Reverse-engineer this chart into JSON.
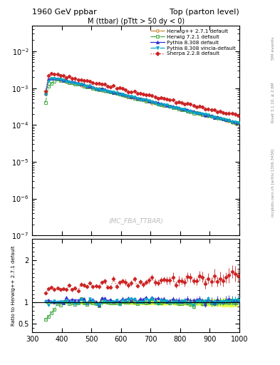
{
  "title_left": "1960 GeV ppbar",
  "title_right": "Top (parton level)",
  "plot_title": "M (ttbar) (pTtt > 50 dy < 0)",
  "watermark": "(MC_FBA_TTBAR)",
  "right_label_top": "5M events",
  "right_label_rivet": "Rivet 3.1.10, ≥ 2.6M",
  "right_label_arxiv": "mcplots.cern.ch [arXiv:1306.3436]",
  "ylabel_ratio": "Ratio to Herwig++ 2.7.1 default",
  "xlim": [
    300,
    1000
  ],
  "ylim_main": [
    1e-07,
    0.05
  ],
  "ylim_ratio": [
    0.3,
    2.5
  ],
  "ratio_yticks": [
    0.5,
    1.0,
    2.0
  ],
  "series": [
    {
      "label": "Herwig++ 2.7.1 default",
      "color": "#cc8833",
      "linestyle": "-.",
      "marker": "o",
      "marker_size": 2.5,
      "filled": false
    },
    {
      "label": "Herwig 7.2.1 default",
      "color": "#44aa44",
      "linestyle": "-.",
      "marker": "s",
      "marker_size": 2.5,
      "filled": false
    },
    {
      "label": "Pythia 8.308 default",
      "color": "#3333cc",
      "linestyle": "-",
      "marker": "^",
      "marker_size": 2.5,
      "filled": true
    },
    {
      "label": "Pythia 8.308 vincia-default",
      "color": "#00aacc",
      "linestyle": "-.",
      "marker": "v",
      "marker_size": 2.5,
      "filled": true
    },
    {
      "label": "Sherpa 2.2.8 default",
      "color": "#cc2222",
      "linestyle": ":",
      "marker": "D",
      "marker_size": 2.5,
      "filled": true
    }
  ],
  "band_outer_color": "#ddff00",
  "band_inner_color": "#88cc44",
  "background_color": "#ffffff"
}
